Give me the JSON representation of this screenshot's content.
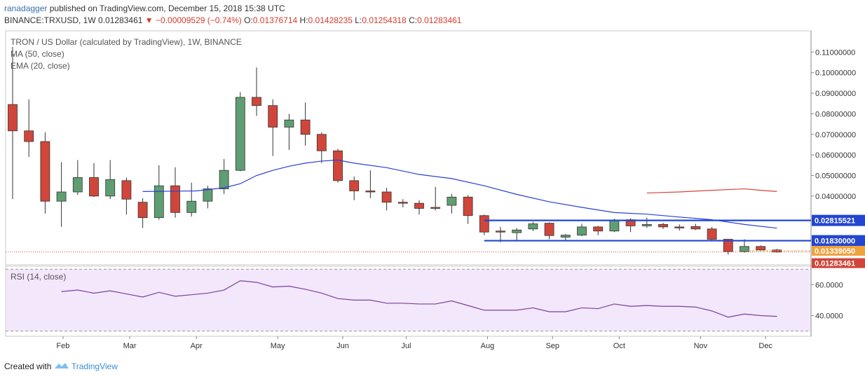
{
  "header": {
    "user": "ranadagger",
    "published_text": "published on TradingView.com, December 15, 2018 15:38 UTC",
    "symbol": "BINANCE:TRXUSD, 1W",
    "last": "0.01283461",
    "change": "−0.00009529 (−0.74%)",
    "o_label": "O:",
    "o_value": "0.01376714",
    "h_label": "H:",
    "h_value": "0.01428235",
    "l_label": "L:",
    "l_value": "0.01254318",
    "c_label": "C:",
    "c_value": "0.01283461"
  },
  "legend": {
    "title": "TRON / US Dollar (calculated by TradingView), 1W, BINANCE",
    "ma": "MA (50, close)",
    "ema": "EMA (20, close)",
    "rsi": "RSI (14, close)"
  },
  "footer": {
    "created_with": "Created with",
    "brand": "TradingView"
  },
  "colors": {
    "up": "#5f9e72",
    "down": "#d0463a",
    "ema": "#2b3fd6",
    "ma": "#d6443a",
    "level": "#2346d0",
    "rsi": "#7b3fa3",
    "rsi_bg": "#f3e7fb",
    "tag_blue": "#2346d0",
    "tag_red": "#d0463a"
  },
  "chart_data": {
    "type": "candlestick",
    "title": "TRON / US Dollar (calculated by TradingView), 1W, BINANCE",
    "x_ticks": [
      {
        "label": "Feb",
        "week": 3.1
      },
      {
        "label": "Mar",
        "week": 7.2
      },
      {
        "label": "Apr",
        "week": 11.3
      },
      {
        "label": "May",
        "week": 16.3
      },
      {
        "label": "Jun",
        "week": 20.3
      },
      {
        "label": "Jul",
        "week": 24.2
      },
      {
        "label": "Aug",
        "week": 29.2
      },
      {
        "label": "Sep",
        "week": 33.2
      },
      {
        "label": "Oct",
        "week": 37.3
      },
      {
        "label": "Nov",
        "week": 42.3
      },
      {
        "label": "Dec",
        "week": 46.3
      }
    ],
    "y_ticks": [
      "0.04000000",
      "0.05000000",
      "0.06000000",
      "0.07000000",
      "0.08000000",
      "0.09000000",
      "0.10000000",
      "0.11000000"
    ],
    "ylim": [
      0.01,
      0.114
    ],
    "candles": [
      {
        "o": 0.0845,
        "h": 0.1125,
        "l": 0.0385,
        "c": 0.0717
      },
      {
        "o": 0.0717,
        "h": 0.087,
        "l": 0.059,
        "c": 0.0665
      },
      {
        "o": 0.0665,
        "h": 0.071,
        "l": 0.0315,
        "c": 0.0375
      },
      {
        "o": 0.0375,
        "h": 0.0565,
        "l": 0.025,
        "c": 0.042
      },
      {
        "o": 0.042,
        "h": 0.0575,
        "l": 0.0405,
        "c": 0.049
      },
      {
        "o": 0.049,
        "h": 0.056,
        "l": 0.0395,
        "c": 0.04
      },
      {
        "o": 0.04,
        "h": 0.0575,
        "l": 0.0385,
        "c": 0.048
      },
      {
        "o": 0.0475,
        "h": 0.049,
        "l": 0.031,
        "c": 0.0385
      },
      {
        "o": 0.037,
        "h": 0.039,
        "l": 0.0245,
        "c": 0.0295
      },
      {
        "o": 0.0295,
        "h": 0.055,
        "l": 0.0285,
        "c": 0.045
      },
      {
        "o": 0.045,
        "h": 0.054,
        "l": 0.0295,
        "c": 0.032
      },
      {
        "o": 0.032,
        "h": 0.0465,
        "l": 0.03,
        "c": 0.0375
      },
      {
        "o": 0.0375,
        "h": 0.045,
        "l": 0.034,
        "c": 0.0435
      },
      {
        "o": 0.0435,
        "h": 0.058,
        "l": 0.041,
        "c": 0.0525
      },
      {
        "o": 0.0525,
        "h": 0.0905,
        "l": 0.052,
        "c": 0.088
      },
      {
        "o": 0.088,
        "h": 0.1025,
        "l": 0.079,
        "c": 0.084
      },
      {
        "o": 0.084,
        "h": 0.087,
        "l": 0.0595,
        "c": 0.0735
      },
      {
        "o": 0.0735,
        "h": 0.08,
        "l": 0.0625,
        "c": 0.077
      },
      {
        "o": 0.077,
        "h": 0.0855,
        "l": 0.0645,
        "c": 0.07
      },
      {
        "o": 0.07,
        "h": 0.071,
        "l": 0.056,
        "c": 0.062
      },
      {
        "o": 0.062,
        "h": 0.063,
        "l": 0.0465,
        "c": 0.0475
      },
      {
        "o": 0.0475,
        "h": 0.0495,
        "l": 0.038,
        "c": 0.0425
      },
      {
        "o": 0.0425,
        "h": 0.0525,
        "l": 0.039,
        "c": 0.042
      },
      {
        "o": 0.042,
        "h": 0.044,
        "l": 0.033,
        "c": 0.037
      },
      {
        "o": 0.037,
        "h": 0.0385,
        "l": 0.0345,
        "c": 0.0365
      },
      {
        "o": 0.0365,
        "h": 0.038,
        "l": 0.031,
        "c": 0.034
      },
      {
        "o": 0.0345,
        "h": 0.0445,
        "l": 0.033,
        "c": 0.034
      },
      {
        "o": 0.0355,
        "h": 0.041,
        "l": 0.0315,
        "c": 0.0395
      },
      {
        "o": 0.0395,
        "h": 0.0405,
        "l": 0.0265,
        "c": 0.0305
      },
      {
        "o": 0.0305,
        "h": 0.031,
        "l": 0.021,
        "c": 0.0225
      },
      {
        "o": 0.023,
        "h": 0.025,
        "l": 0.0175,
        "c": 0.0228
      },
      {
        "o": 0.0222,
        "h": 0.0245,
        "l": 0.0185,
        "c": 0.0235
      },
      {
        "o": 0.024,
        "h": 0.0275,
        "l": 0.023,
        "c": 0.0265
      },
      {
        "o": 0.0268,
        "h": 0.0272,
        "l": 0.019,
        "c": 0.0208
      },
      {
        "o": 0.02,
        "h": 0.0215,
        "l": 0.018,
        "c": 0.021
      },
      {
        "o": 0.021,
        "h": 0.0265,
        "l": 0.0205,
        "c": 0.025
      },
      {
        "o": 0.025,
        "h": 0.0255,
        "l": 0.021,
        "c": 0.023
      },
      {
        "o": 0.023,
        "h": 0.029,
        "l": 0.0225,
        "c": 0.0282
      },
      {
        "o": 0.0285,
        "h": 0.0292,
        "l": 0.0225,
        "c": 0.0255
      },
      {
        "o": 0.0255,
        "h": 0.0295,
        "l": 0.0245,
        "c": 0.0262
      },
      {
        "o": 0.0262,
        "h": 0.027,
        "l": 0.024,
        "c": 0.025
      },
      {
        "o": 0.025,
        "h": 0.0262,
        "l": 0.0232,
        "c": 0.0248
      },
      {
        "o": 0.0252,
        "h": 0.0265,
        "l": 0.0235,
        "c": 0.024
      },
      {
        "o": 0.024,
        "h": 0.025,
        "l": 0.018,
        "c": 0.019
      },
      {
        "o": 0.019,
        "h": 0.019,
        "l": 0.0115,
        "c": 0.013
      },
      {
        "o": 0.013,
        "h": 0.019,
        "l": 0.0125,
        "c": 0.0155
      },
      {
        "o": 0.0155,
        "h": 0.016,
        "l": 0.0135,
        "c": 0.0138
      },
      {
        "o": 0.0138,
        "h": 0.0143,
        "l": 0.0125,
        "c": 0.0128
      }
    ],
    "ema_20": [
      {
        "week": 8.0,
        "v": 0.0422
      },
      {
        "week": 11.3,
        "v": 0.0425
      },
      {
        "week": 13.0,
        "v": 0.044
      },
      {
        "week": 14.0,
        "v": 0.046
      },
      {
        "week": 15.0,
        "v": 0.05
      },
      {
        "week": 16.0,
        "v": 0.0525
      },
      {
        "week": 17.0,
        "v": 0.0545
      },
      {
        "week": 18.0,
        "v": 0.056
      },
      {
        "week": 19.0,
        "v": 0.057
      },
      {
        "week": 20.0,
        "v": 0.0575
      },
      {
        "week": 21.0,
        "v": 0.056
      },
      {
        "week": 23.0,
        "v": 0.0538
      },
      {
        "week": 25.0,
        "v": 0.0505
      },
      {
        "week": 27.0,
        "v": 0.0485
      },
      {
        "week": 29.0,
        "v": 0.045
      },
      {
        "week": 31.0,
        "v": 0.0408
      },
      {
        "week": 33.0,
        "v": 0.0372
      },
      {
        "week": 35.0,
        "v": 0.0345
      },
      {
        "week": 37.0,
        "v": 0.032
      },
      {
        "week": 39.0,
        "v": 0.0312
      },
      {
        "week": 41.0,
        "v": 0.0298
      },
      {
        "week": 43.0,
        "v": 0.0285
      },
      {
        "week": 45.0,
        "v": 0.0262
      },
      {
        "week": 47.0,
        "v": 0.0244
      }
    ],
    "ma_50": [
      {
        "week": 39.0,
        "v": 0.0415
      },
      {
        "week": 41.0,
        "v": 0.042
      },
      {
        "week": 43.0,
        "v": 0.0428
      },
      {
        "week": 45.0,
        "v": 0.0435
      },
      {
        "week": 46.0,
        "v": 0.0428
      },
      {
        "week": 47.0,
        "v": 0.0422
      }
    ],
    "levels": [
      {
        "value": 0.02815521,
        "label": "0.02815521",
        "from_week": 29.0
      },
      {
        "value": 0.0183,
        "label": "0.01830000",
        "from_week": 29.0
      }
    ],
    "price_tags": [
      {
        "value": 0.0133905,
        "label": "0.01339050"
      },
      {
        "value": 0.01283461,
        "label": "0.01283461"
      }
    ],
    "rsi": {
      "y_ticks": [
        "40.0000",
        "60.0000"
      ],
      "ylim": [
        25,
        72
      ],
      "bands": [
        30,
        70
      ],
      "values": [
        {
          "week": 3,
          "v": 55.5
        },
        {
          "week": 4,
          "v": 56.5
        },
        {
          "week": 5,
          "v": 54.5
        },
        {
          "week": 6,
          "v": 56.0
        },
        {
          "week": 7,
          "v": 54.0
        },
        {
          "week": 8,
          "v": 52.0
        },
        {
          "week": 9,
          "v": 55.0
        },
        {
          "week": 10,
          "v": 52.5
        },
        {
          "week": 11,
          "v": 53.5
        },
        {
          "week": 12,
          "v": 54.5
        },
        {
          "week": 13,
          "v": 56.5
        },
        {
          "week": 14,
          "v": 62.5
        },
        {
          "week": 15,
          "v": 61.5
        },
        {
          "week": 16,
          "v": 58.5
        },
        {
          "week": 17,
          "v": 59.0
        },
        {
          "week": 18,
          "v": 57.0
        },
        {
          "week": 19,
          "v": 54.5
        },
        {
          "week": 20,
          "v": 51.0
        },
        {
          "week": 21,
          "v": 50.0
        },
        {
          "week": 22,
          "v": 50.0
        },
        {
          "week": 23,
          "v": 48.0
        },
        {
          "week": 24,
          "v": 48.0
        },
        {
          "week": 25,
          "v": 47.5
        },
        {
          "week": 26,
          "v": 47.5
        },
        {
          "week": 27,
          "v": 49.5
        },
        {
          "week": 28,
          "v": 46.5
        },
        {
          "week": 29,
          "v": 43.5
        },
        {
          "week": 30,
          "v": 43.5
        },
        {
          "week": 31,
          "v": 43.5
        },
        {
          "week": 32,
          "v": 45.0
        },
        {
          "week": 33,
          "v": 42.5
        },
        {
          "week": 34,
          "v": 42.5
        },
        {
          "week": 35,
          "v": 45.0
        },
        {
          "week": 36,
          "v": 44.5
        },
        {
          "week": 37,
          "v": 47.5
        },
        {
          "week": 38,
          "v": 46.0
        },
        {
          "week": 39,
          "v": 46.5
        },
        {
          "week": 40,
          "v": 46.0
        },
        {
          "week": 41,
          "v": 46.0
        },
        {
          "week": 42,
          "v": 45.5
        },
        {
          "week": 43,
          "v": 43.0
        },
        {
          "week": 44,
          "v": 39.0
        },
        {
          "week": 45,
          "v": 41.0
        },
        {
          "week": 46,
          "v": 40.0
        },
        {
          "week": 47,
          "v": 39.5
        }
      ]
    }
  }
}
